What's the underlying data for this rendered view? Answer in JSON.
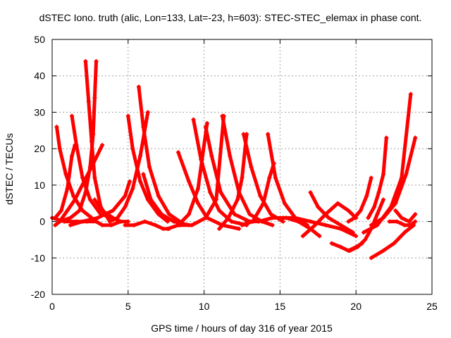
{
  "chart_data": {
    "type": "scatter",
    "title": "dSTEC Iono. truth (alic, Lon=133, Lat=-23, h=603): STEC-STEC_elemax in phase cont.",
    "xlabel": "GPS time / hours of day 316 of year 2015",
    "ylabel": "dSTEC  / TECUs",
    "xlim": [
      0,
      25
    ],
    "ylim": [
      -20,
      50
    ],
    "xticks": [
      0,
      5,
      10,
      15,
      20,
      25
    ],
    "yticks": [
      -20,
      -10,
      0,
      10,
      20,
      30,
      40,
      50
    ],
    "xtick_labels": [
      "0",
      "5",
      "10",
      "15",
      "20",
      "25"
    ],
    "ytick_labels": [
      "-20",
      "-10",
      "0",
      "10",
      "20",
      "30",
      "40",
      "50"
    ],
    "grid": true,
    "marker": "+",
    "color": "#ff0000",
    "series": [
      {
        "x": [
          0.2,
          0.5,
          1.0,
          1.5,
          2.1,
          2.6,
          3.3
        ],
        "y": [
          -1,
          0,
          3,
          6,
          11,
          15,
          21
        ]
      },
      {
        "x": [
          0.3,
          0.5,
          0.9,
          1.4,
          2.0,
          2.6
        ],
        "y": [
          26,
          20,
          13,
          7,
          3,
          1
        ]
      },
      {
        "x": [
          0.2,
          0.6,
          1.0,
          1.3,
          1.5
        ],
        "y": [
          1,
          3,
          9,
          18,
          21
        ]
      },
      {
        "x": [
          1.3,
          1.6,
          2.0,
          2.5,
          3.2,
          4.0
        ],
        "y": [
          29,
          21,
          12,
          6,
          2,
          1
        ]
      },
      {
        "x": [
          0.0,
          0.8,
          1.6,
          2.3,
          2.9,
          3.3,
          3.9,
          4.5
        ],
        "y": [
          1,
          0,
          0,
          0,
          0,
          -1,
          -1,
          0
        ]
      },
      {
        "x": [
          2.2,
          2.4,
          2.6,
          2.8,
          3.2,
          3.8
        ],
        "y": [
          44,
          33,
          22,
          12,
          4,
          0
        ]
      },
      {
        "x": [
          2.9,
          2.8,
          2.7,
          2.5,
          2.2,
          1.8,
          1.2,
          0.5
        ],
        "y": [
          44,
          34,
          24,
          15,
          8,
          3,
          1,
          0
        ]
      },
      {
        "x": [
          2.8,
          3.3,
          4.0,
          4.5,
          5.0
        ],
        "y": [
          6,
          3,
          1,
          0,
          0
        ]
      },
      {
        "x": [
          3.8,
          4.3,
          4.8,
          5.3,
          5.8,
          6.3
        ],
        "y": [
          0,
          1,
          4,
          9,
          18,
          30
        ]
      },
      {
        "x": [
          5.0,
          5.3,
          5.8,
          6.3,
          7.0,
          7.6
        ],
        "y": [
          29,
          20,
          11,
          6,
          2,
          0
        ]
      },
      {
        "x": [
          5.7,
          6.0,
          6.4,
          7.0,
          7.7,
          8.4
        ],
        "y": [
          37,
          26,
          15,
          7,
          2,
          0
        ]
      },
      {
        "x": [
          1.2,
          2.0,
          3.0,
          4.0,
          4.8,
          5.1
        ],
        "y": [
          -1,
          0,
          1,
          3,
          7,
          11
        ]
      },
      {
        "x": [
          4.8,
          5.4,
          6.1,
          6.8,
          7.3,
          7.7
        ],
        "y": [
          -1,
          -1,
          0,
          -1,
          -2,
          -2
        ]
      },
      {
        "x": [
          6.0,
          6.5,
          7.2,
          8.0,
          9.0
        ],
        "y": [
          13,
          6,
          2,
          0,
          -1
        ]
      },
      {
        "x": [
          7.6,
          8.3,
          9.0,
          9.6,
          10.2
        ],
        "y": [
          -2,
          -1,
          2,
          9,
          27
        ]
      },
      {
        "x": [
          8.3,
          9.0,
          9.6,
          10.2,
          11.2,
          12.3
        ],
        "y": [
          19,
          11,
          5,
          1,
          -1,
          -2
        ]
      },
      {
        "x": [
          9.3,
          9.8,
          10.4,
          11.0,
          11.8,
          12.8
        ],
        "y": [
          28,
          17,
          8,
          3,
          0,
          -1
        ]
      },
      {
        "x": [
          10.1,
          10.5,
          11.1,
          12.0,
          13.0
        ],
        "y": [
          26,
          18,
          8,
          2,
          0
        ]
      },
      {
        "x": [
          8.4,
          9.2,
          10.1,
          10.8,
          11.3
        ],
        "y": [
          -1,
          -1,
          1,
          6,
          29
        ]
      },
      {
        "x": [
          11.2,
          11.7,
          12.3,
          13.0,
          13.8,
          14.5
        ],
        "y": [
          29,
          18,
          8,
          2,
          0,
          -1
        ]
      },
      {
        "x": [
          11.0,
          11.6,
          12.2,
          12.5,
          12.8
        ],
        "y": [
          -2,
          1,
          6,
          12,
          24
        ]
      },
      {
        "x": [
          12.6,
          13.1,
          13.7,
          14.4,
          15.2
        ],
        "y": [
          24,
          15,
          7,
          2,
          0
        ]
      },
      {
        "x": [
          12.5,
          13.2,
          13.9,
          14.3,
          14.6
        ],
        "y": [
          -1,
          0,
          5,
          12,
          16
        ]
      },
      {
        "x": [
          14.2,
          14.7,
          15.3,
          16.0,
          16.8
        ],
        "y": [
          24,
          12,
          5,
          1,
          -1
        ]
      },
      {
        "x": [
          12.8,
          13.6,
          14.5,
          15.4,
          16.2,
          17.0,
          17.6
        ],
        "y": [
          0,
          0,
          1,
          1,
          0,
          -2,
          -4
        ]
      },
      {
        "x": [
          15.2,
          16.0,
          17.0,
          18.0,
          19.0,
          20.0
        ],
        "y": [
          1,
          1,
          0,
          -1,
          -2,
          -4
        ]
      },
      {
        "x": [
          16.5,
          17.3,
          18.0,
          18.8,
          19.5,
          20.0
        ],
        "y": [
          -4,
          -1,
          2,
          5,
          3,
          1
        ]
      },
      {
        "x": [
          17.0,
          17.5,
          18.2,
          19.0,
          19.8
        ],
        "y": [
          8,
          4,
          1,
          -1,
          -3
        ]
      },
      {
        "x": [
          18.4,
          19.0,
          19.5,
          20.0,
          20.4
        ],
        "y": [
          -6,
          -7,
          -8,
          -7,
          -6
        ]
      },
      {
        "x": [
          19.6,
          20.1,
          20.6,
          21.0,
          21.4,
          21.8
        ],
        "y": [
          -8,
          -7,
          -5,
          -2,
          2,
          6
        ]
      },
      {
        "x": [
          20.8,
          21.2,
          21.5,
          21.8,
          22.0
        ],
        "y": [
          1,
          4,
          8,
          13,
          23
        ]
      },
      {
        "x": [
          19.5,
          19.9,
          20.3,
          20.7,
          21.0
        ],
        "y": [
          0,
          1,
          3,
          7,
          12
        ]
      },
      {
        "x": [
          21.0,
          21.8,
          22.5,
          23.2,
          23.8
        ],
        "y": [
          -10,
          -8,
          -6,
          -3,
          -1
        ]
      },
      {
        "x": [
          21.0,
          21.8,
          22.6,
          23.3,
          23.9
        ],
        "y": [
          -1,
          1,
          5,
          13,
          23
        ]
      },
      {
        "x": [
          20.5,
          21.4,
          22.3,
          23.0,
          23.6
        ],
        "y": [
          -3,
          -1,
          4,
          12,
          35
        ]
      },
      {
        "x": [
          22.2,
          22.7,
          23.2,
          23.6,
          23.9
        ],
        "y": [
          0,
          0,
          -1,
          -1,
          0
        ]
      },
      {
        "x": [
          22.6,
          23.0,
          23.5,
          23.9
        ],
        "y": [
          3,
          1,
          0,
          2
        ]
      }
    ]
  }
}
